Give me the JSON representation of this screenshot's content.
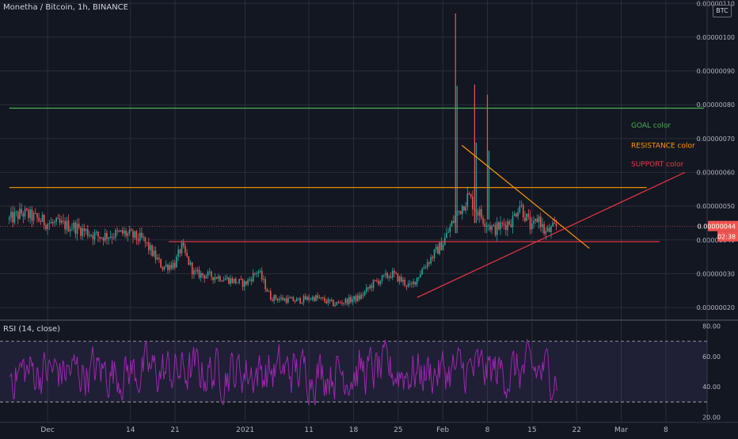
{
  "header": {
    "currency_badge": "BTC"
  },
  "colors": {
    "background": "#131722",
    "grid": "#2a2e39",
    "up": "#26a69a",
    "down": "#ef5350",
    "goal": "#4caf50",
    "resistance": "#ff9800",
    "support": "#f23645",
    "rsi_line": "#9c27b0",
    "rsi_band": "#7e57c2"
  },
  "chart_data": [
    {
      "type": "candlestick",
      "title": "Monetha / Bitcoin, 1h, BINANCE",
      "ylim": [
        1.65e-08,
        1.11e-07
      ],
      "y_ticks": [
        "0.00000020",
        "0.00000030",
        "0.00000040",
        "0.00000050",
        "0.00000060",
        "0.00000070",
        "0.00000080",
        "0.00000090",
        "0.00000100",
        "0.00000110"
      ],
      "y_tick_values": [
        2e-08,
        3e-08,
        4e-08,
        5e-08,
        6e-08,
        7e-08,
        8e-08,
        9e-08,
        1e-07,
        1.1e-07
      ],
      "x_ticks": [
        "Dec",
        "14",
        "21",
        "2021",
        "11",
        "18",
        "25",
        "Feb",
        "8",
        "15",
        "22",
        "Mar",
        "8"
      ],
      "x_tick_dates": [
        "2020-12-01",
        "2020-12-14",
        "2020-12-21",
        "2021-01-01",
        "2021-01-11",
        "2021-01-18",
        "2021-01-25",
        "2021-02-01",
        "2021-02-08",
        "2021-02-15",
        "2021-02-22",
        "2021-03-01",
        "2021-03-08"
      ],
      "price_path": [
        [
          "2020-11-25",
          4.6e-08
        ],
        [
          "2020-11-27",
          4.8e-08
        ],
        [
          "2020-12-01",
          4.5e-08
        ],
        [
          "2020-12-05",
          4.4e-08
        ],
        [
          "2020-12-09",
          4.1e-08
        ],
        [
          "2020-12-13",
          4.2e-08
        ],
        [
          "2020-12-16",
          4e-08
        ],
        [
          "2020-12-19",
          3.2e-08
        ],
        [
          "2020-12-21",
          3.3e-08
        ],
        [
          "2020-12-22",
          3.8e-08
        ],
        [
          "2020-12-24",
          3e-08
        ],
        [
          "2020-12-28",
          2.9e-08
        ],
        [
          "2021-01-01",
          2.7e-08
        ],
        [
          "2021-01-03",
          3.1e-08
        ],
        [
          "2021-01-05",
          2.3e-08
        ],
        [
          "2021-01-09",
          2.2e-08
        ],
        [
          "2021-01-12",
          2.3e-08
        ],
        [
          "2021-01-15",
          2.1e-08
        ],
        [
          "2021-01-19",
          2.3e-08
        ],
        [
          "2021-01-21",
          2.7e-08
        ],
        [
          "2021-01-24",
          3e-08
        ],
        [
          "2021-01-27",
          2.6e-08
        ],
        [
          "2021-01-29",
          3.2e-08
        ],
        [
          "2021-02-01",
          3.9e-08
        ],
        [
          "2021-02-03",
          4.7e-08
        ],
        [
          "2021-02-05",
          5.3e-08
        ],
        [
          "2021-02-07",
          4.7e-08
        ],
        [
          "2021-02-09",
          4.3e-08
        ],
        [
          "2021-02-12",
          4.6e-08
        ],
        [
          "2021-02-13",
          5.1e-08
        ],
        [
          "2021-02-15",
          4.3e-08
        ],
        [
          "2021-02-16",
          4.7e-08
        ],
        [
          "2021-02-17",
          4.2e-08
        ],
        [
          "2021-02-19",
          4.4e-08
        ]
      ],
      "spikes": [
        {
          "date": "2021-02-03",
          "high": 1.07e-07,
          "low": 4.2e-08
        },
        {
          "date": "2021-02-06",
          "high": 8.6e-08,
          "low": 4.5e-08
        },
        {
          "date": "2021-02-08",
          "high": 8.3e-08,
          "low": 4.6e-08
        }
      ],
      "current_price": "0.00000044",
      "countdown": "02:38",
      "horizontal_lines": [
        {
          "name": "goal",
          "value": 7.9e-08,
          "from": "2020-11-25",
          "to": "2021-03-14"
        },
        {
          "name": "resistance",
          "value": 5.55e-08,
          "from": "2020-11-25",
          "to": "2021-03-05"
        },
        {
          "name": "support",
          "value": 3.95e-08,
          "from": "2020-12-20",
          "to": "2021-03-07"
        }
      ],
      "trend_lines": [
        {
          "name": "descending",
          "from": [
            "2021-02-04",
            6.8e-08
          ],
          "to": [
            "2021-02-24",
            3.75e-08
          ]
        },
        {
          "name": "ascending",
          "from": [
            "2021-01-28",
            2.3e-08
          ],
          "to": [
            "2021-03-11",
            6e-08
          ]
        }
      ],
      "labels": [
        {
          "text": "GOAL color",
          "color": "goal",
          "value": 7.4e-08
        },
        {
          "text": "RESISTANCE color",
          "color": "resistance",
          "value": 6.8e-08
        },
        {
          "text": "SUPPORT color",
          "color": "support",
          "value": 6.25e-08
        }
      ]
    },
    {
      "type": "line",
      "title": "RSI (14, close)",
      "ylim": [
        17,
        84
      ],
      "y_ticks": [
        "20.00",
        "40.00",
        "60.00",
        "80.00"
      ],
      "y_tick_values": [
        20,
        40,
        60,
        80
      ],
      "band": [
        30,
        70
      ],
      "date_range": [
        "2020-11-25",
        "2021-02-19"
      ],
      "mean": 50
    }
  ]
}
